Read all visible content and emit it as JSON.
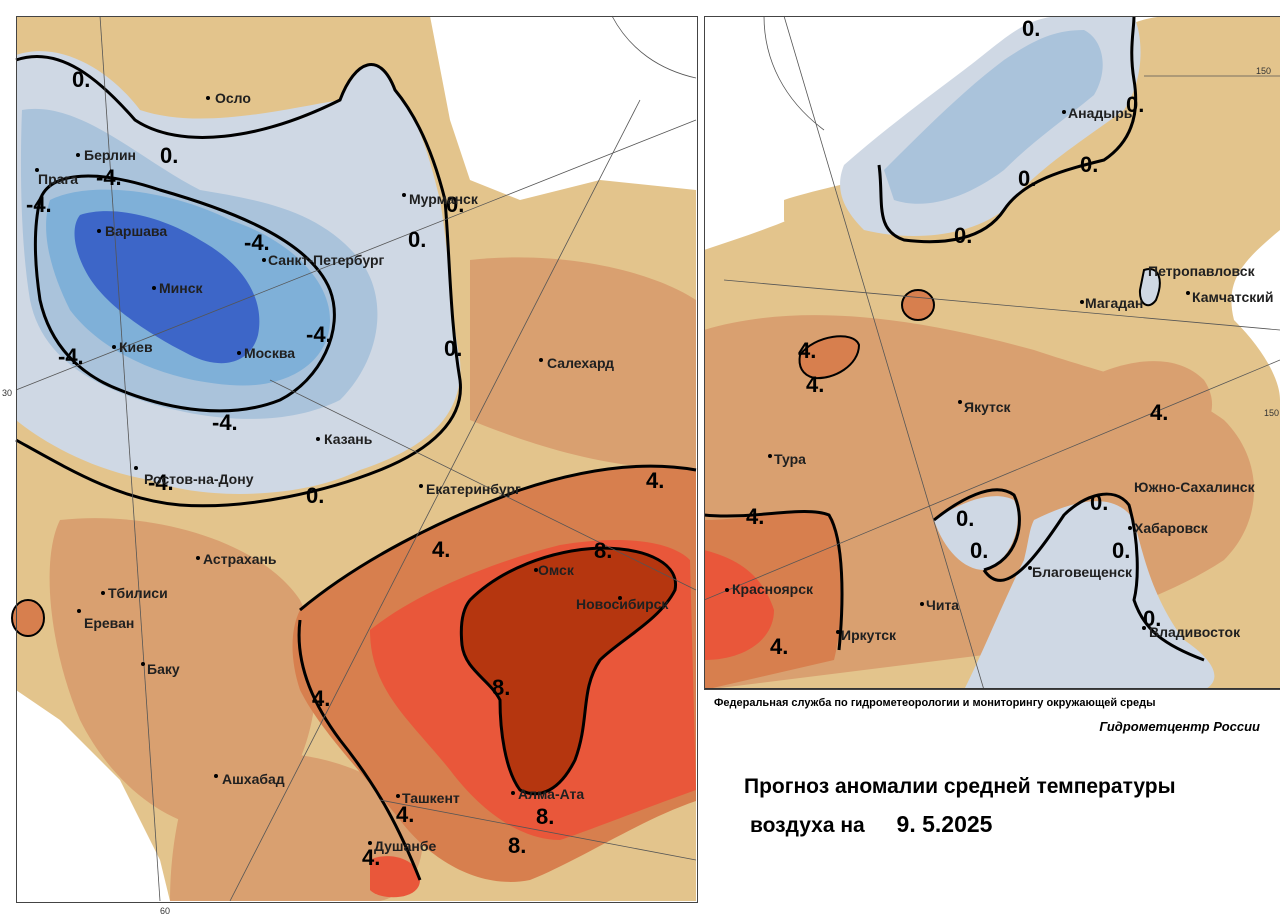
{
  "title": {
    "line1": "Прогноз аномалии средней температуры",
    "line2_prefix": "воздуха на",
    "date": "9. 5.2025"
  },
  "agency": "Федеральная служба по гидрометеорологии и мониторингу окружающей среды",
  "center": "Гидрометцентр России",
  "grid_labels": {
    "left_lat": "30",
    "left_bottom": "60",
    "right_top": "150",
    "right_edge": "150"
  },
  "colors": {
    "anomaly_strong_cold": "#3d66c8",
    "anomaly_cold": "#7fb0d8",
    "anomaly_cool": "#aac3db",
    "anomaly_slight_cool": "#cfd8e4",
    "anomaly_slight_warm": "#e3c48c",
    "anomaly_warm": "#d9a070",
    "anomaly_warmer": "#d77f4e",
    "anomaly_hot": "#e9573a",
    "anomaly_very_hot": "#b5360f"
  },
  "left_map": {
    "cities": [
      {
        "id": "oslo",
        "name": "Осло"
      },
      {
        "id": "berlin",
        "name": "Берлин"
      },
      {
        "id": "praga",
        "name": "Прага"
      },
      {
        "id": "warszawa",
        "name": "Варшава"
      },
      {
        "id": "minsk",
        "name": "Минск"
      },
      {
        "id": "kiev",
        "name": "Киев"
      },
      {
        "id": "moskva",
        "name": "Москва"
      },
      {
        "id": "spb",
        "name": "Санкт-Петербург"
      },
      {
        "id": "murmansk",
        "name": "Мурманск"
      },
      {
        "id": "salehard",
        "name": "Салехард"
      },
      {
        "id": "kazan",
        "name": "Казань"
      },
      {
        "id": "rostov",
        "name": "Ростов-на-Дону"
      },
      {
        "id": "ekb",
        "name": "Екатеринбург"
      },
      {
        "id": "astrahan",
        "name": "Астрахань"
      },
      {
        "id": "tbilisi",
        "name": "Тбилиси"
      },
      {
        "id": "erevan",
        "name": "Ереван"
      },
      {
        "id": "baku",
        "name": "Баку"
      },
      {
        "id": "omsk",
        "name": "Омск"
      },
      {
        "id": "novosib",
        "name": "Новосибирск"
      },
      {
        "id": "ashhabad",
        "name": "Ашхабад"
      },
      {
        "id": "tashkent",
        "name": "Ташкент"
      },
      {
        "id": "almaata",
        "name": "Алма-Ата"
      },
      {
        "id": "dushanbe",
        "name": "Душанбе"
      }
    ],
    "isolines": [
      "0.",
      "0.",
      "0.",
      "0.",
      "0.",
      "0.",
      "-4.",
      "-4.",
      "-4.",
      "-4.",
      "-4.",
      "-4.",
      "-4.",
      "4.",
      "4.",
      "4.",
      "4.",
      "4.",
      "8.",
      "8.",
      "8.",
      "8."
    ]
  },
  "right_map": {
    "cities": [
      {
        "id": "anadyr",
        "name": "Анадырь"
      },
      {
        "id": "petropavlovsk1",
        "name": "Петропавловск"
      },
      {
        "id": "petropavlovsk2",
        "name": "Камчатский"
      },
      {
        "id": "magadan",
        "name": "Магадан"
      },
      {
        "id": "yakutsk",
        "name": "Якутск"
      },
      {
        "id": "tura",
        "name": "Тура"
      },
      {
        "id": "sahalinsk",
        "name": "Южно-Сахалинск"
      },
      {
        "id": "habarovsk",
        "name": "Хабаровск"
      },
      {
        "id": "blagoveshchensk",
        "name": "Благовещенск"
      },
      {
        "id": "krasnoyarsk",
        "name": "Красноярск"
      },
      {
        "id": "chita",
        "name": "Чита"
      },
      {
        "id": "irkutsk",
        "name": "Иркутск"
      },
      {
        "id": "vladivostok",
        "name": "Владивосток"
      }
    ],
    "isolines": [
      "0.",
      "0.",
      "0.",
      "0.",
      "0.",
      "0.",
      "0.",
      "0.",
      "0.",
      "4.",
      "4.",
      "4.",
      "4.",
      "4."
    ]
  }
}
